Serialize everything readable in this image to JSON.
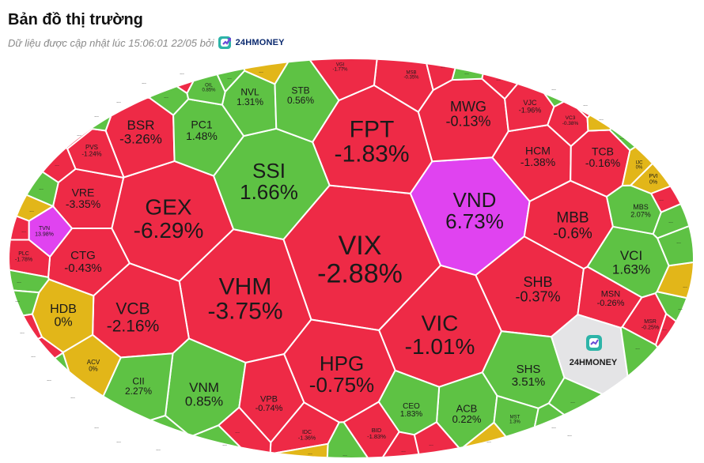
{
  "header": {
    "title": "Bản đồ thị trường",
    "subtitle": "Dữ liệu được cập nhật lúc 15:06:01 22/05 bởi",
    "brand": "24HMONEY"
  },
  "colors": {
    "down": "#ee2a46",
    "up": "#5ec244",
    "flat": "#e2b619",
    "ceiling": "#e043f0",
    "logo_tile": "#e4e4e6"
  },
  "chart_data": {
    "type": "heatmap",
    "layout": "voronoi-ellipse",
    "cells": [
      {
        "ticker": "VIX",
        "change": "-2.88%",
        "status": "down"
      },
      {
        "ticker": "FPT",
        "change": "-1.83%",
        "status": "down"
      },
      {
        "ticker": "VND",
        "change": "6.73%",
        "status": "ceiling"
      },
      {
        "ticker": "VHM",
        "change": "-3.75%",
        "status": "down"
      },
      {
        "ticker": "GEX",
        "change": "-6.29%",
        "status": "down"
      },
      {
        "ticker": "SSI",
        "change": "1.66%",
        "status": "up"
      },
      {
        "ticker": "VIC",
        "change": "-1.01%",
        "status": "down"
      },
      {
        "ticker": "HPG",
        "change": "-0.75%",
        "status": "down"
      },
      {
        "ticker": "VCB",
        "change": "-2.16%",
        "status": "down"
      },
      {
        "ticker": "SHB",
        "change": "-0.37%",
        "status": "down"
      },
      {
        "ticker": "MBB",
        "change": "-0.6%",
        "status": "down"
      },
      {
        "ticker": "MWG",
        "change": "-0.13%",
        "status": "down"
      },
      {
        "ticker": "BSR",
        "change": "-3.26%",
        "status": "down"
      },
      {
        "ticker": "VCI",
        "change": "1.63%",
        "status": "up"
      },
      {
        "ticker": "VNM",
        "change": "0.85%",
        "status": "up"
      },
      {
        "ticker": "SHS",
        "change": "3.51%",
        "status": "up"
      },
      {
        "ticker": "HDB",
        "change": "0%",
        "status": "flat"
      },
      {
        "ticker": "HCM",
        "change": "-1.38%",
        "status": "down"
      },
      {
        "ticker": "TCB",
        "change": "-0.16%",
        "status": "down"
      },
      {
        "ticker": "PC1",
        "change": "1.48%",
        "status": "up"
      },
      {
        "ticker": "CTG",
        "change": "-0.43%",
        "status": "down"
      },
      {
        "ticker": "VRE",
        "change": "-3.35%",
        "status": "down"
      },
      {
        "ticker": "NVL",
        "change": "1.31%",
        "status": "up"
      },
      {
        "ticker": "STB",
        "change": "0.56%",
        "status": "up"
      },
      {
        "ticker": "ACB",
        "change": "0.22%",
        "status": "up"
      },
      {
        "ticker": "CII",
        "change": "2.27%",
        "status": "up"
      },
      {
        "ticker": "MSN",
        "change": "-0.26%",
        "status": "down"
      },
      {
        "ticker": "VPB",
        "change": "-0.74%",
        "status": "down"
      },
      {
        "ticker": "CEO",
        "change": "1.83%",
        "status": "up"
      },
      {
        "ticker": "VJC",
        "change": "-1.96%",
        "status": "down"
      },
      {
        "ticker": "MBS",
        "change": "2.07%",
        "status": "up"
      },
      {
        "ticker": "PVS",
        "change": "-1.24%",
        "status": "down"
      },
      {
        "ticker": "ACV",
        "change": "0%",
        "status": "flat"
      },
      {
        "ticker": "TVN",
        "change": "13.98%",
        "status": "ceiling"
      },
      {
        "ticker": "PLC",
        "change": "-1.78%",
        "status": "down"
      },
      {
        "ticker": "VC3",
        "change": "-0.38%",
        "status": "down"
      },
      {
        "ticker": "IDC",
        "change": "-1.36%",
        "status": "down"
      },
      {
        "ticker": "BID",
        "change": "-1.83%",
        "status": "down"
      },
      {
        "ticker": "MSR",
        "change": "-0.25%",
        "status": "down"
      },
      {
        "ticker": "PVI",
        "change": "0%",
        "status": "flat"
      },
      {
        "ticker": "MST",
        "change": "1.3%",
        "status": "up"
      },
      {
        "ticker": "IJC",
        "change": "0%",
        "status": "flat"
      },
      {
        "ticker": "MSB",
        "change": "-0.35%",
        "status": "down"
      },
      {
        "ticker": "VGI",
        "change": "-1.77%",
        "status": "down"
      },
      {
        "ticker": "OIL",
        "change": "0.85%",
        "status": "up"
      }
    ],
    "filler_cells": [
      "down",
      "up",
      "down",
      "flat",
      "up",
      "down",
      "down",
      "up",
      "flat",
      "down",
      "up",
      "up",
      "down",
      "down",
      "up",
      "flat",
      "down",
      "up",
      "up",
      "up",
      "down",
      "flat",
      "up",
      "down",
      "down",
      "flat",
      "up",
      "up",
      "down",
      "up",
      "down",
      "up",
      "flat",
      "up",
      "up",
      "down",
      "up",
      "flat",
      "down",
      "up",
      "down",
      "up",
      "down",
      "flat",
      "up"
    ],
    "logo_tile": "24HMONEY"
  }
}
